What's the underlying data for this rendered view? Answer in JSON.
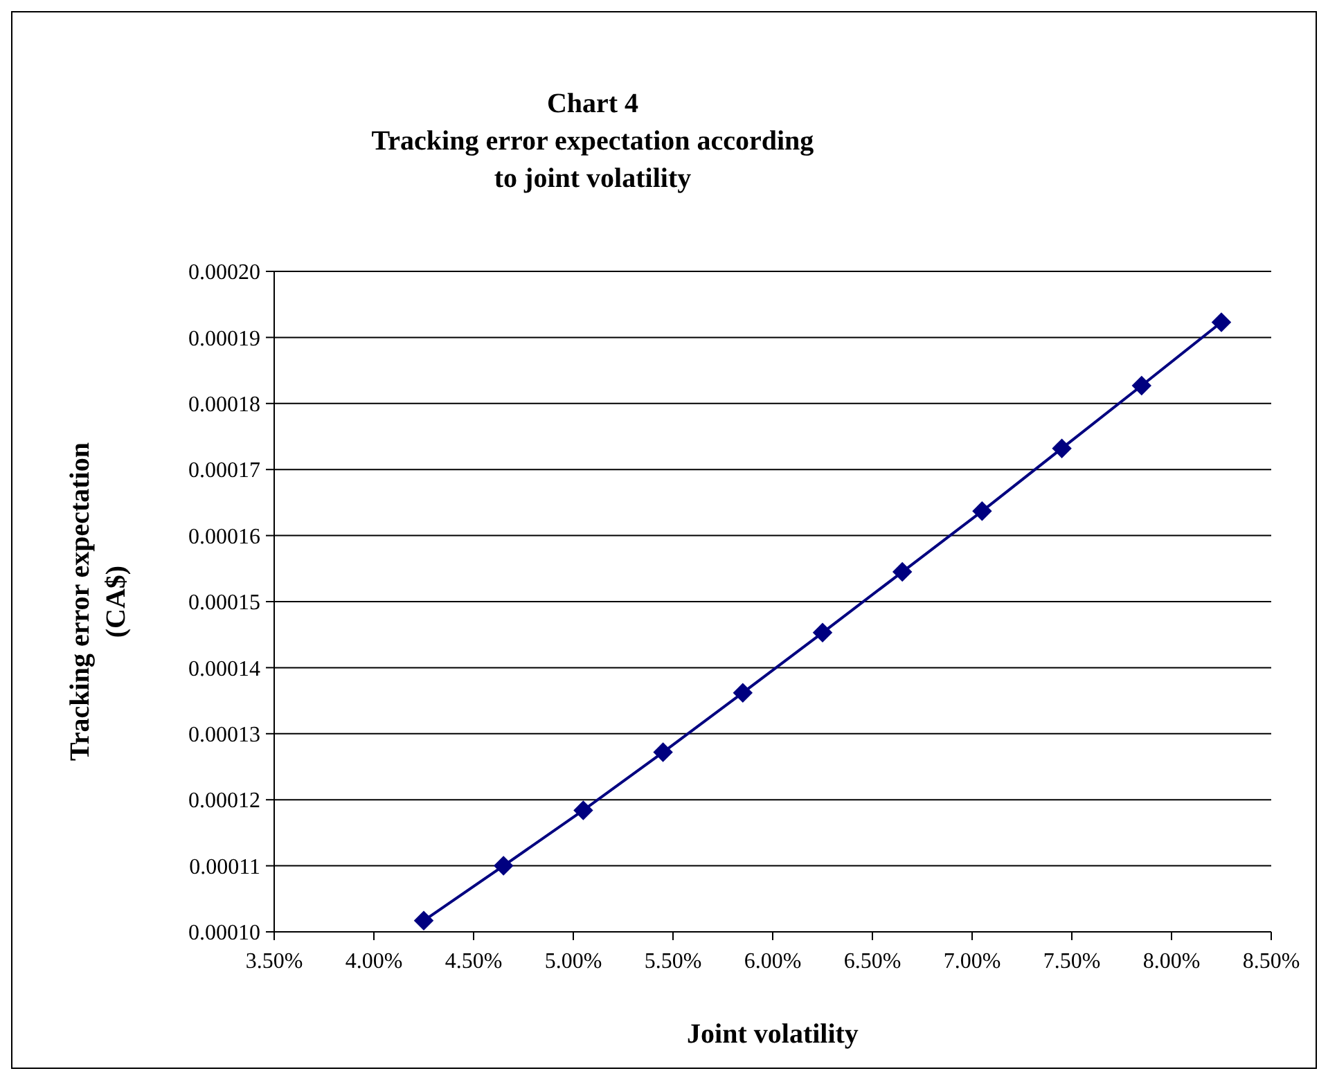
{
  "chart_data": {
    "type": "line",
    "title": "Chart 4\nTracking error expectation according\nto joint volatility",
    "xlabel": "Joint volatility",
    "ylabel": "Tracking error expectation\n(CA$)",
    "x": [
      4.25,
      4.65,
      5.05,
      5.45,
      5.85,
      6.25,
      6.65,
      7.05,
      7.45,
      7.85,
      8.25
    ],
    "series": [
      {
        "color": "#000080",
        "values": [
          0.0001017,
          0.00011,
          0.0001184,
          0.0001272,
          0.0001362,
          0.0001453,
          0.0001545,
          0.0001637,
          0.0001732,
          0.0001827,
          0.0001923
        ]
      }
    ],
    "xlim": [
      3.5,
      8.5
    ],
    "xticks": [
      {
        "value": 3.5,
        "label": "3.50%"
      },
      {
        "value": 4,
        "label": "4.00%"
      },
      {
        "value": 4.5,
        "label": "4.50%"
      },
      {
        "value": 5,
        "label": "5.00%"
      },
      {
        "value": 5.5,
        "label": "5.50%"
      },
      {
        "value": 6,
        "label": "6.00%"
      },
      {
        "value": 6.5,
        "label": "6.50%"
      },
      {
        "value": 7,
        "label": "7.00%"
      },
      {
        "value": 7.5,
        "label": "7.50%"
      },
      {
        "value": 8,
        "label": "8.00%"
      },
      {
        "value": 8.5,
        "label": "8.50%"
      }
    ],
    "ylim": [
      0.0001,
      0.0002
    ],
    "yticks": [
      {
        "value": 0.0001,
        "label": "0.00010"
      },
      {
        "value": 0.00011,
        "label": "0.00011"
      },
      {
        "value": 0.00012,
        "label": "0.00012"
      },
      {
        "value": 0.00013,
        "label": "0.00013"
      },
      {
        "value": 0.00014,
        "label": "0.00014"
      },
      {
        "value": 0.00015,
        "label": "0.00015"
      },
      {
        "value": 0.00016,
        "label": "0.00016"
      },
      {
        "value": 0.00017,
        "label": "0.00017"
      },
      {
        "value": 0.00018,
        "label": "0.00018"
      },
      {
        "value": 0.00019,
        "label": "0.00019"
      },
      {
        "value": 0.0002,
        "label": "0.00020"
      }
    ],
    "grid": "y",
    "marker": "diamond",
    "line_style": "solid"
  }
}
